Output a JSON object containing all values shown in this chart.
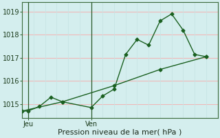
{
  "title": "",
  "xlabel": "Pression niveau de la mer( hPa )",
  "ylabel": "",
  "bg_color": "#d4eeee",
  "grid_color_h": "#f0b8b8",
  "grid_color_v": "#c8e4e4",
  "line_color": "#1a6020",
  "ylim": [
    1014.4,
    1019.4
  ],
  "xlim": [
    0,
    17
  ],
  "yticks": [
    1015,
    1016,
    1017,
    1018,
    1019
  ],
  "xtick_positions": [
    0.5,
    6
  ],
  "xtick_labels": [
    "Jeu",
    "Ven"
  ],
  "vlines": [
    0.5,
    6.0
  ],
  "series1_x": [
    0,
    0.5,
    1.5,
    2.5,
    3.5,
    6.0,
    7.0,
    8.0,
    9.0,
    10.0,
    11.0,
    12.0,
    13.0,
    14.0,
    15.0,
    16.0
  ],
  "series1_y": [
    1014.7,
    1014.7,
    1014.9,
    1015.3,
    1015.1,
    1014.85,
    1015.35,
    1015.65,
    1017.15,
    1017.8,
    1017.55,
    1018.6,
    1018.9,
    1018.2,
    1017.15,
    1017.05
  ],
  "series2_x": [
    0,
    3.5,
    8.0,
    12.0,
    16.0
  ],
  "series2_y": [
    1014.7,
    1015.1,
    1015.8,
    1016.5,
    1017.05
  ],
  "marker": "D",
  "marker_size": 2.5,
  "line_width": 1.0
}
